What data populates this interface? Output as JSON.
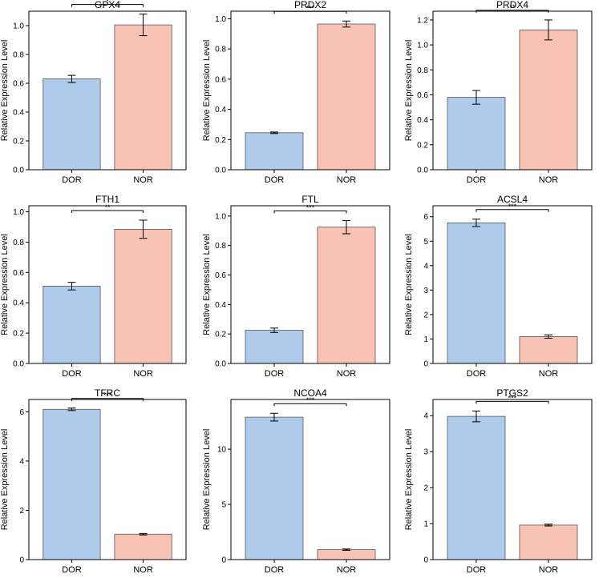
{
  "figure": {
    "ylabel": "Relative Expression Level",
    "categories": [
      "DOR",
      "NOR"
    ],
    "colors": {
      "DOR": "#aecbeb",
      "NOR": "#f8c3b4",
      "edge": "#555555",
      "axis": "#000000"
    }
  },
  "chart_data": [
    {
      "type": "bar",
      "title": "GPX4",
      "categories": [
        "DOR",
        "NOR"
      ],
      "values": [
        0.63,
        1.005
      ],
      "errors": [
        0.025,
        0.075
      ],
      "ylim": [
        0,
        1.1
      ],
      "ticks": [
        0.0,
        0.2,
        0.4,
        0.6,
        0.8,
        1.0
      ],
      "tick_labels": [
        "0.0",
        "0.2",
        "0.4",
        "0.6",
        "0.8",
        "1.0"
      ],
      "significance": "*",
      "ylabel": "Relative Expression Level"
    },
    {
      "type": "bar",
      "title": "PRDX2",
      "categories": [
        "DOR",
        "NOR"
      ],
      "values": [
        0.245,
        0.965
      ],
      "errors": [
        0.005,
        0.02
      ],
      "ylim": [
        0,
        1.05
      ],
      "ticks": [
        0.0,
        0.2,
        0.4,
        0.6,
        0.8,
        1.0
      ],
      "tick_labels": [
        "0.0",
        "0.2",
        "0.4",
        "0.6",
        "0.8",
        "1.0"
      ],
      "significance": "***",
      "ylabel": "Relative Expression Level"
    },
    {
      "type": "bar",
      "title": "PRDX4",
      "categories": [
        "DOR",
        "NOR"
      ],
      "values": [
        0.58,
        1.12
      ],
      "errors": [
        0.055,
        0.08
      ],
      "ylim": [
        0,
        1.27
      ],
      "ticks": [
        0.0,
        0.2,
        0.4,
        0.6,
        0.8,
        1.0,
        1.2
      ],
      "tick_labels": [
        "0.0",
        "0.2",
        "0.4",
        "0.6",
        "0.8",
        "1.0",
        "1.2"
      ],
      "significance": "**",
      "ylabel": "Relative Expression Level"
    },
    {
      "type": "bar",
      "title": "FTH1",
      "categories": [
        "DOR",
        "NOR"
      ],
      "values": [
        0.51,
        0.885
      ],
      "errors": [
        0.025,
        0.06
      ],
      "ylim": [
        0,
        1.04
      ],
      "ticks": [
        0.0,
        0.2,
        0.4,
        0.6,
        0.8,
        1.0
      ],
      "tick_labels": [
        "0.0",
        "0.2",
        "0.4",
        "0.6",
        "0.8",
        "1.0"
      ],
      "significance": "**",
      "ylabel": "Relative Expression Level"
    },
    {
      "type": "bar",
      "title": "FTL",
      "categories": [
        "DOR",
        "NOR"
      ],
      "values": [
        0.225,
        0.925
      ],
      "errors": [
        0.015,
        0.045
      ],
      "ylim": [
        0,
        1.07
      ],
      "ticks": [
        0.0,
        0.2,
        0.4,
        0.6,
        0.8,
        1.0
      ],
      "tick_labels": [
        "0.0",
        "0.2",
        "0.4",
        "0.6",
        "0.8",
        "1.0"
      ],
      "significance": "***",
      "ylabel": "Relative Expression Level"
    },
    {
      "type": "bar",
      "title": "ACSL4",
      "categories": [
        "DOR",
        "NOR"
      ],
      "values": [
        5.75,
        1.1
      ],
      "errors": [
        0.15,
        0.07
      ],
      "ylim": [
        0,
        6.45
      ],
      "ticks": [
        0,
        1,
        2,
        3,
        4,
        5,
        6
      ],
      "tick_labels": [
        "0",
        "1",
        "2",
        "3",
        "4",
        "5",
        "6"
      ],
      "significance": "***",
      "ylabel": "Relative Expression Level"
    },
    {
      "type": "bar",
      "title": "TFRC",
      "categories": [
        "DOR",
        "NOR"
      ],
      "values": [
        6.1,
        1.03
      ],
      "errors": [
        0.05,
        0.03
      ],
      "ylim": [
        0,
        6.5
      ],
      "ticks": [
        0,
        2,
        4,
        6
      ],
      "tick_labels": [
        "0",
        "2",
        "4",
        "6"
      ],
      "significance": "***",
      "ylabel": "Relative Expression Level"
    },
    {
      "type": "bar",
      "title": "NCOA4",
      "categories": [
        "DOR",
        "NOR"
      ],
      "values": [
        12.9,
        0.9
      ],
      "errors": [
        0.35,
        0.06
      ],
      "ylim": [
        0,
        14.5
      ],
      "ticks": [
        0,
        5,
        10
      ],
      "tick_labels": [
        "0",
        "5",
        "10"
      ],
      "significance": "***",
      "ylabel": "Relative Expression Level"
    },
    {
      "type": "bar",
      "title": "PTGS2",
      "categories": [
        "DOR",
        "NOR"
      ],
      "values": [
        3.98,
        0.96
      ],
      "errors": [
        0.15,
        0.025
      ],
      "ylim": [
        0,
        4.45
      ],
      "ticks": [
        0,
        1,
        2,
        3,
        4
      ],
      "tick_labels": [
        "0",
        "1",
        "2",
        "3",
        "4"
      ],
      "significance": "***",
      "ylabel": "Relative Expression Level"
    }
  ]
}
